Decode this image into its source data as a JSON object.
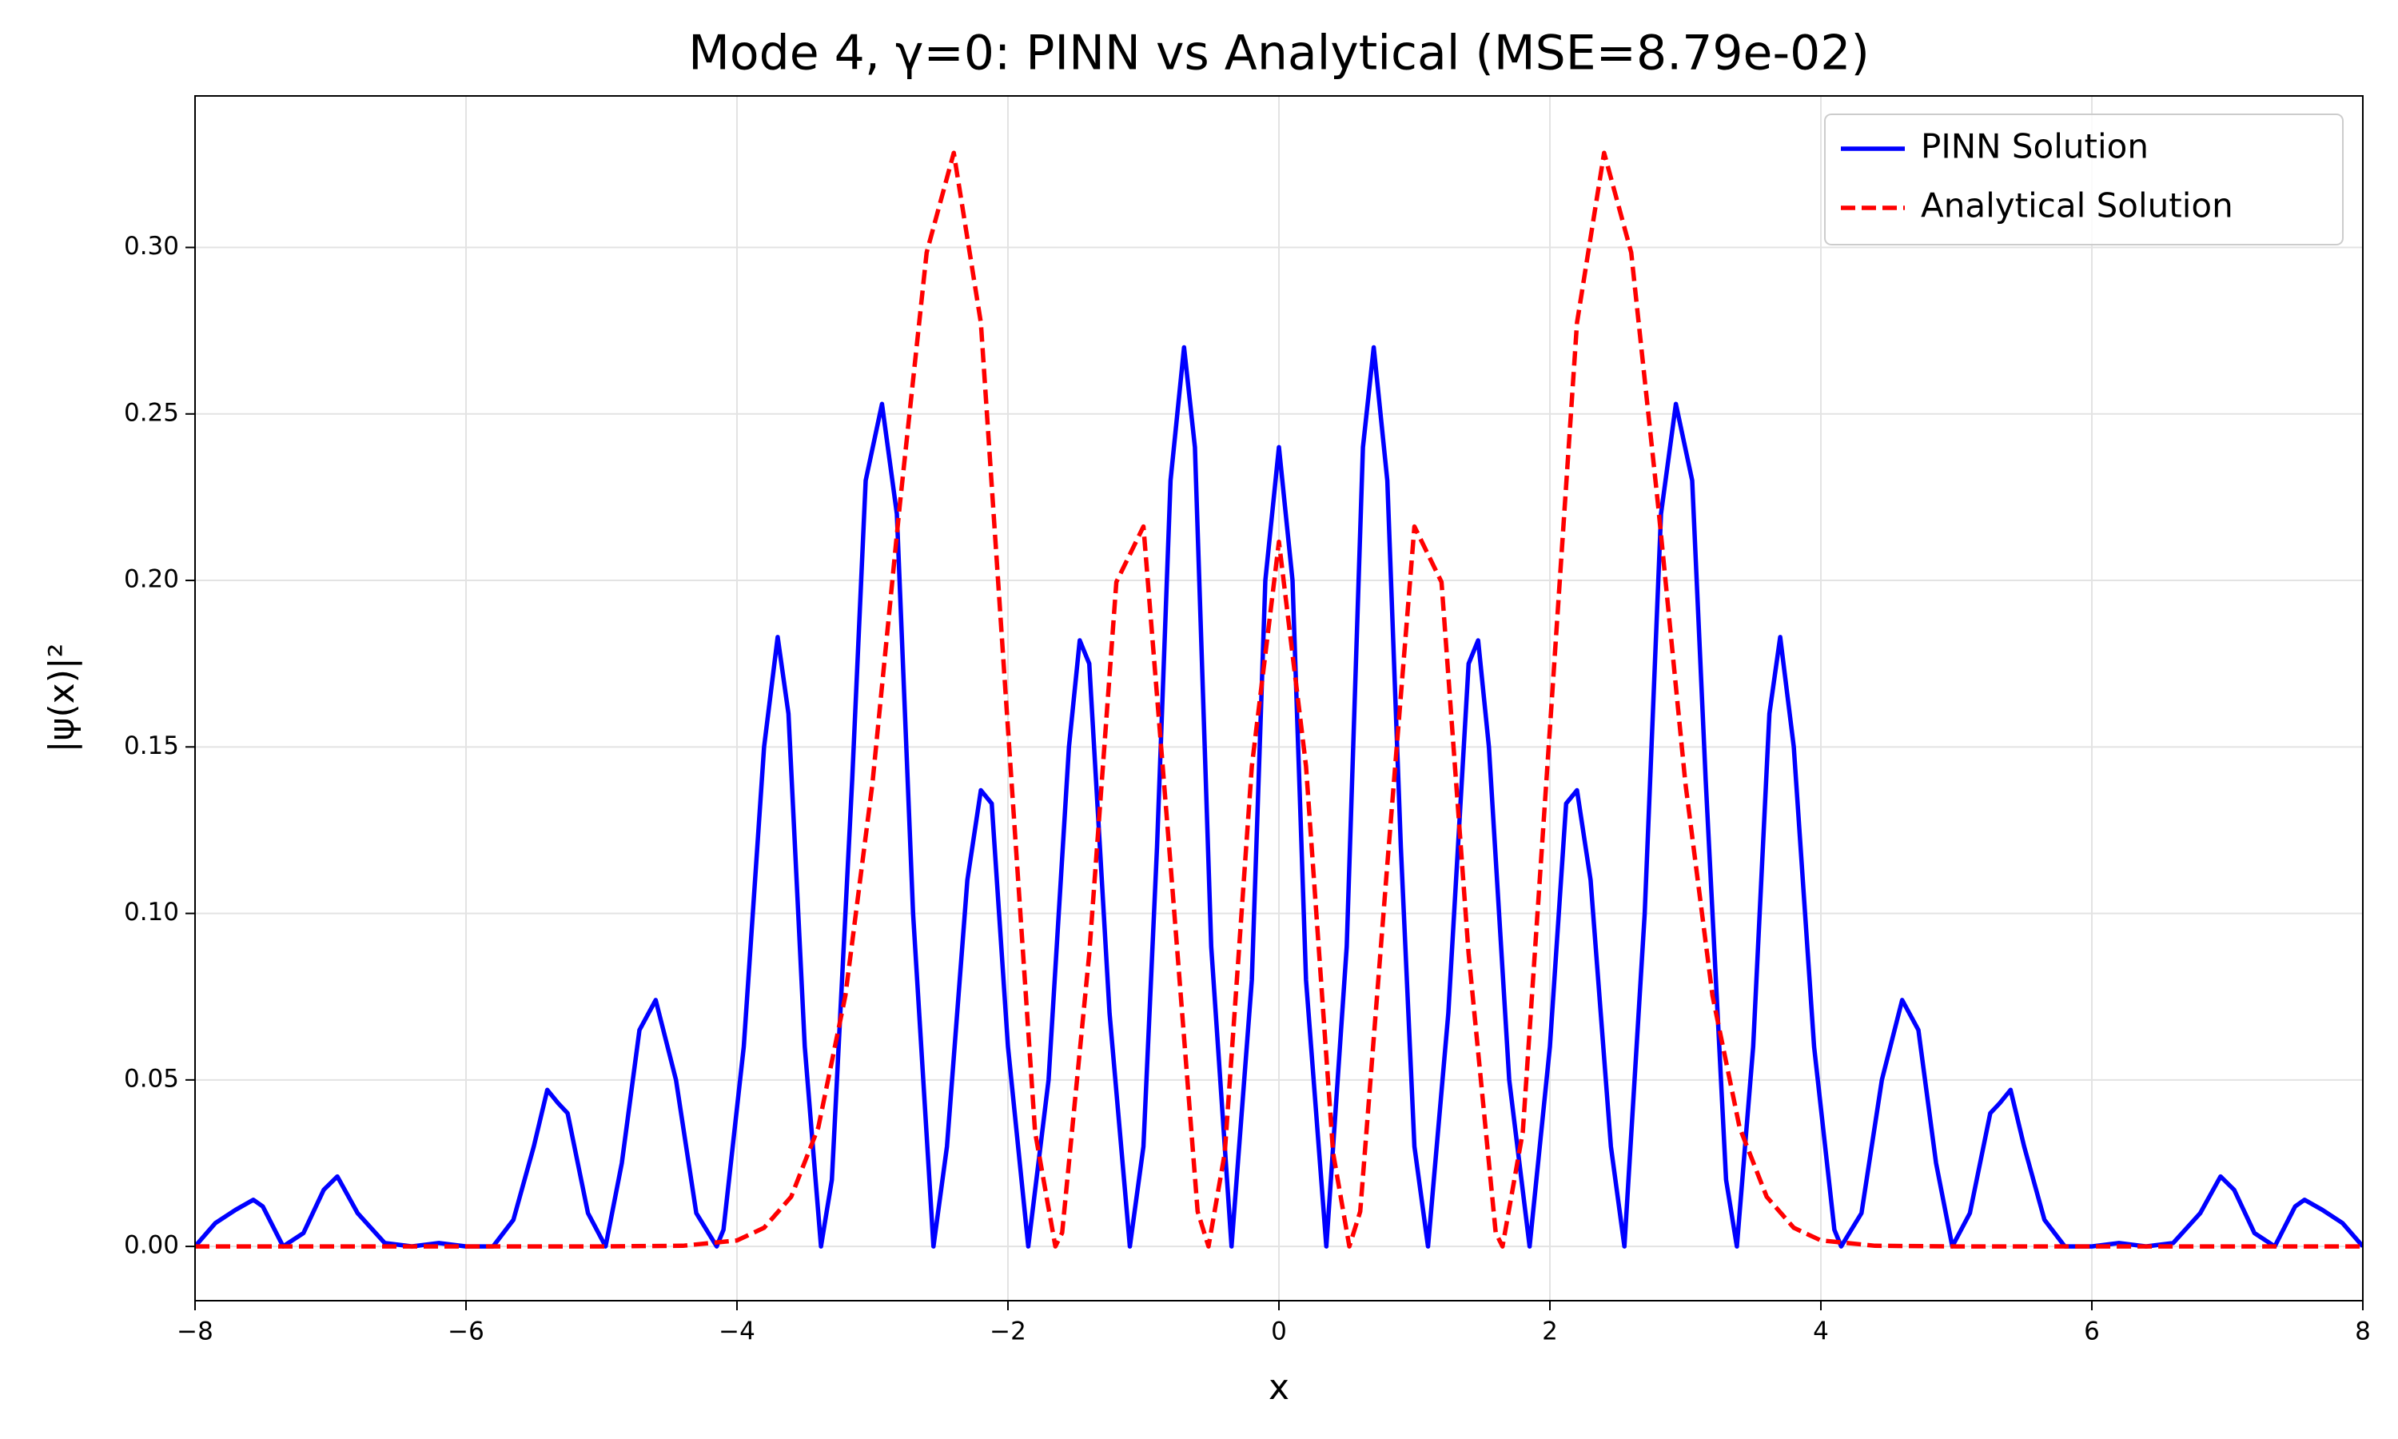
{
  "chart_data": {
    "type": "line",
    "title": "Mode 4, γ=0: PINN vs Analytical (MSE=8.79e-02)",
    "x_label": "x",
    "y_label": "|ψ(x)|²",
    "xlim": [
      -8,
      8
    ],
    "ylim": [
      -0.0163,
      0.3455
    ],
    "xticks": [
      {
        "value": -8,
        "label": "−8"
      },
      {
        "value": -6,
        "label": "−6"
      },
      {
        "value": -4,
        "label": "−4"
      },
      {
        "value": -2,
        "label": "−2"
      },
      0,
      2,
      4,
      6,
      8
    ],
    "yticks": [
      {
        "value": 0,
        "label": "0.00"
      },
      {
        "value": 0.05,
        "label": "0.05"
      },
      {
        "value": 0.1,
        "label": "0.10"
      },
      {
        "value": 0.15,
        "label": "0.15"
      },
      {
        "value": 0.2,
        "label": "0.20"
      },
      {
        "value": 0.25,
        "label": "0.25"
      },
      {
        "value": 0.3,
        "label": "0.30"
      }
    ],
    "grid": true,
    "legend": "upper right",
    "series": [
      {
        "name": "PINN Solution",
        "color": "#0000ff",
        "style": "solid",
        "x": [
          -8,
          -7.85,
          -7.7,
          -7.57,
          -7.5,
          -7.35,
          -7.2,
          -7.05,
          -6.95,
          -6.8,
          -6.6,
          -6.4,
          -6.2,
          -6.0,
          -5.8,
          -5.65,
          -5.5,
          -5.4,
          -5.32,
          -5.25,
          -5.1,
          -4.97,
          -4.85,
          -4.72,
          -4.6,
          -4.45,
          -4.3,
          -4.15,
          -4.1,
          -3.95,
          -3.8,
          -3.7,
          -3.62,
          -3.5,
          -3.38,
          -3.3,
          -3.15,
          -3.05,
          -2.93,
          -2.82,
          -2.7,
          -2.55,
          -2.45,
          -2.3,
          -2.2,
          -2.12,
          -2.0,
          -1.85,
          -1.7,
          -1.55,
          -1.47,
          -1.4,
          -1.25,
          -1.1,
          -1.0,
          -0.9,
          -0.8,
          -0.7,
          -0.62,
          -0.5,
          -0.35,
          -0.2,
          -0.1,
          0,
          0.1,
          0.2,
          0.35,
          0.5,
          0.62,
          0.7,
          0.8,
          0.9,
          1.0,
          1.1,
          1.25,
          1.4,
          1.47,
          1.55,
          1.7,
          1.85,
          2.0,
          2.12,
          2.2,
          2.3,
          2.45,
          2.55,
          2.7,
          2.82,
          2.93,
          3.05,
          3.15,
          3.3,
          3.38,
          3.5,
          3.62,
          3.7,
          3.8,
          3.95,
          4.1,
          4.15,
          4.3,
          4.45,
          4.6,
          4.72,
          4.85,
          4.97,
          5.1,
          5.25,
          5.32,
          5.4,
          5.5,
          5.65,
          5.8,
          6.0,
          6.2,
          6.4,
          6.6,
          6.8,
          6.95,
          7.05,
          7.2,
          7.35,
          7.5,
          7.57,
          7.7,
          7.85,
          8.0
        ],
        "values": [
          0,
          0.007,
          0.011,
          0.014,
          0.012,
          0,
          0.004,
          0.017,
          0.021,
          0.01,
          0.001,
          0,
          0.001,
          0,
          0,
          0.008,
          0.03,
          0.047,
          0.043,
          0.04,
          0.01,
          0,
          0.025,
          0.065,
          0.074,
          0.05,
          0.01,
          0,
          0.005,
          0.06,
          0.15,
          0.183,
          0.16,
          0.06,
          0,
          0.02,
          0.14,
          0.23,
          0.253,
          0.22,
          0.1,
          0,
          0.03,
          0.11,
          0.137,
          0.133,
          0.06,
          0,
          0.05,
          0.15,
          0.182,
          0.175,
          0.07,
          0,
          0.03,
          0.12,
          0.23,
          0.27,
          0.24,
          0.09,
          0,
          0.08,
          0.2,
          0.24,
          0.2,
          0.08,
          0,
          0.09,
          0.24,
          0.27,
          0.23,
          0.12,
          0.03,
          0,
          0.07,
          0.175,
          0.182,
          0.15,
          0.05,
          0,
          0.06,
          0.133,
          0.137,
          0.11,
          0.03,
          0,
          0.1,
          0.22,
          0.253,
          0.23,
          0.14,
          0.02,
          0,
          0.06,
          0.16,
          0.183,
          0.15,
          0.06,
          0.005,
          0,
          0.01,
          0.05,
          0.074,
          0.065,
          0.025,
          0,
          0.01,
          0.04,
          0.043,
          0.047,
          0.03,
          0.008,
          0,
          0,
          0.001,
          0,
          0.001,
          0.01,
          0.021,
          0.017,
          0.004,
          0,
          0.012,
          0.014,
          0.011,
          0.007,
          0
        ]
      },
      {
        "name": "Analytical Solution",
        "color": "#ff0000",
        "style": "dashed",
        "x": [
          -8,
          -5,
          -4.4,
          -4.0,
          -3.8,
          -3.6,
          -3.4,
          -3.2,
          -3.0,
          -2.8,
          -2.6,
          -2.4,
          -2.2,
          -2.0,
          -1.8,
          -1.65,
          -1.6,
          -1.4,
          -1.2,
          -1.0,
          -0.8,
          -0.6,
          -0.52,
          -0.4,
          -0.2,
          0,
          0.2,
          0.4,
          0.52,
          0.6,
          0.8,
          1.0,
          1.2,
          1.4,
          1.6,
          1.65,
          1.8,
          2.0,
          2.2,
          2.4,
          2.6,
          2.8,
          3.0,
          3.2,
          3.4,
          3.6,
          3.8,
          4.0,
          4.4,
          5,
          8
        ],
        "values": [
          0,
          0,
          0.0002,
          0.0018,
          0.0056,
          0.0149,
          0.0357,
          0.0753,
          0.1391,
          0.222,
          0.2985,
          0.3284,
          0.2774,
          0.1555,
          0.0344,
          0,
          0.0041,
          0.0879,
          0.1995,
          0.2162,
          0.1147,
          0.0105,
          0,
          0.028,
          0.1442,
          0.2116,
          0.1442,
          0.028,
          0,
          0.0105,
          0.1147,
          0.2162,
          0.1995,
          0.0879,
          0.0041,
          0,
          0.0344,
          0.1555,
          0.2774,
          0.3284,
          0.2985,
          0.222,
          0.1391,
          0.0753,
          0.0357,
          0.0149,
          0.0056,
          0.0018,
          0.0002,
          0,
          0
        ]
      }
    ]
  }
}
